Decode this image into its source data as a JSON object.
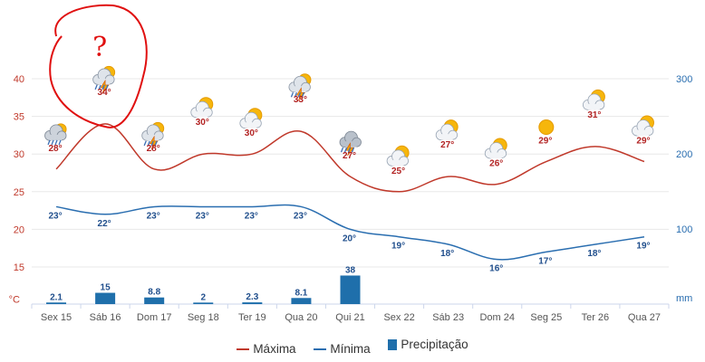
{
  "chart_data": {
    "type": "line",
    "categories": [
      "Sex 15",
      "Sáb 16",
      "Dom 17",
      "Seg 18",
      "Ter 19",
      "Qua 20",
      "Qui 21",
      "Sex 22",
      "Sáb 23",
      "Dom 24",
      "Seg 25",
      "Ter 26",
      "Qua 27"
    ],
    "left_axis": {
      "ticks": [
        "40",
        "35",
        "30",
        "25",
        "20",
        "15"
      ],
      "unit": "°C",
      "range": [
        10,
        42
      ]
    },
    "right_axis": {
      "ticks": [
        "300",
        "200",
        "100"
      ],
      "unit": "mm",
      "range": [
        0,
        300
      ]
    },
    "series": [
      {
        "name": "Máxima",
        "color": "#c0392b",
        "values": [
          28,
          34,
          28,
          30,
          30,
          33,
          27,
          25,
          27,
          26,
          29,
          31,
          29
        ],
        "labels": [
          "28°",
          "34°",
          "28°",
          "30°",
          "30°",
          "33°",
          "27°",
          "25°",
          "27°",
          "26°",
          "29°",
          "31°",
          "29°"
        ]
      },
      {
        "name": "Mínima",
        "color": "#2a6eb0",
        "values": [
          23,
          22,
          23,
          23,
          23,
          23,
          20,
          19,
          18,
          16,
          17,
          18,
          19
        ],
        "labels": [
          "23°",
          "22°",
          "23°",
          "23°",
          "23°",
          "23°",
          "20°",
          "19°",
          "18°",
          "16°",
          "17°",
          "18°",
          "19°"
        ]
      },
      {
        "name": "Precipitação",
        "color": "#1f6fab",
        "type": "bar",
        "values": [
          2.1,
          15,
          8.8,
          2,
          2.3,
          8.1,
          38,
          null,
          null,
          null,
          null,
          null,
          null
        ],
        "labels": [
          "2.1",
          "15",
          "8.8",
          "2",
          "2.3",
          "8.1",
          "38",
          "",
          "",
          "",
          "",
          "",
          ""
        ]
      }
    ],
    "weather_icons": [
      "rain-cloud",
      "storm",
      "storm",
      "partly-cloudy",
      "partly-cloudy",
      "storm",
      "storm-cloud",
      "partly-cloudy",
      "partly-cloudy",
      "partly-cloudy",
      "sun",
      "partly-cloudy",
      "partly-cloudy"
    ],
    "annotation": "?"
  },
  "legend": {
    "max_label": "Máxima",
    "min_label": "Mínima",
    "prec_label": "Precipitação"
  },
  "colors": {
    "max": "#c0392b",
    "min": "#2a6eb0",
    "prec": "#1f6fab",
    "grid": "#e6e6e6",
    "annotation": "#e01010"
  }
}
